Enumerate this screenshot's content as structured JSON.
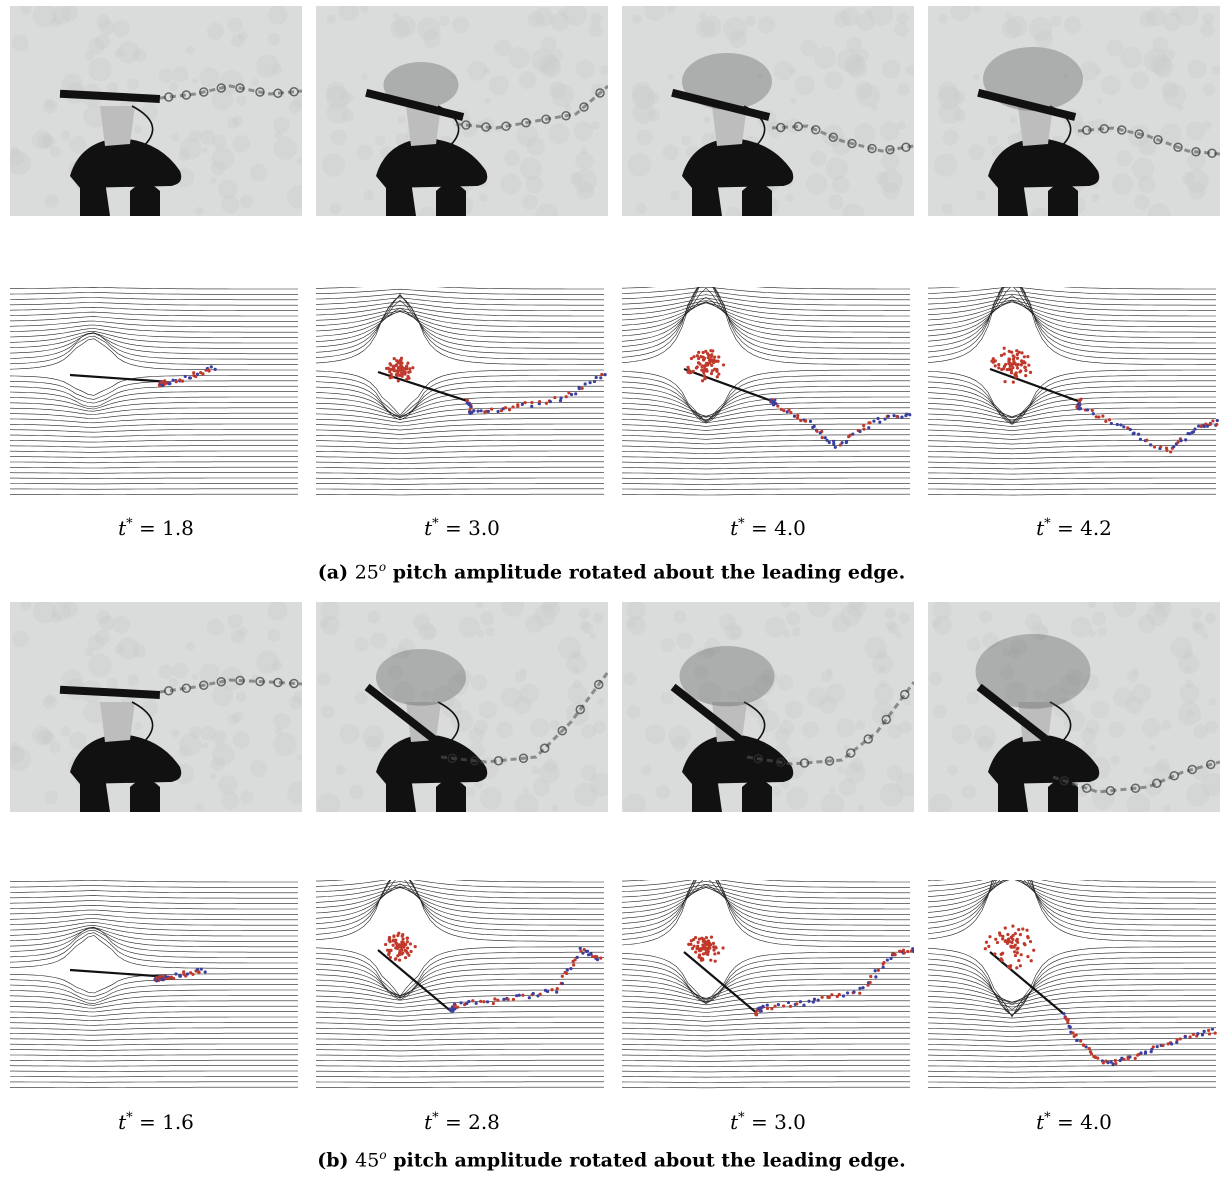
{
  "figure": {
    "sections": [
      {
        "caption_tag": "(a)",
        "caption_angle": "25",
        "caption_angle_sup": "o",
        "caption_text": "pitch amplitude rotated about the leading edge.",
        "frames": [
          {
            "t_var": "t",
            "t_sup": "*",
            "t_eq": " = 1.8"
          },
          {
            "t_var": "t",
            "t_sup": "*",
            "t_eq": " = 3.0"
          },
          {
            "t_var": "t",
            "t_sup": "*",
            "t_eq": " = 4.0"
          },
          {
            "t_var": "t",
            "t_sup": "*",
            "t_eq": " = 4.2"
          }
        ]
      },
      {
        "caption_tag": "(b)",
        "caption_angle": "45",
        "caption_angle_sup": "o",
        "caption_text": "pitch amplitude rotated about the leading edge.",
        "frames": [
          {
            "t_var": "t",
            "t_sup": "*",
            "t_eq": " = 1.6"
          },
          {
            "t_var": "t",
            "t_sup": "*",
            "t_eq": " = 2.8"
          },
          {
            "t_var": "t",
            "t_sup": "*",
            "t_eq": " = 3.0"
          },
          {
            "t_var": "t",
            "t_sup": "*",
            "t_eq": " = 4.0"
          }
        ]
      }
    ],
    "colors": {
      "photo_background": "#dadcdc",
      "apparatus": "#111111",
      "dye": "#555555",
      "streamline": "#222222",
      "particles_leading_edge": "#c0392b",
      "particles_trailing_edge": "#3c3fa0"
    }
  }
}
